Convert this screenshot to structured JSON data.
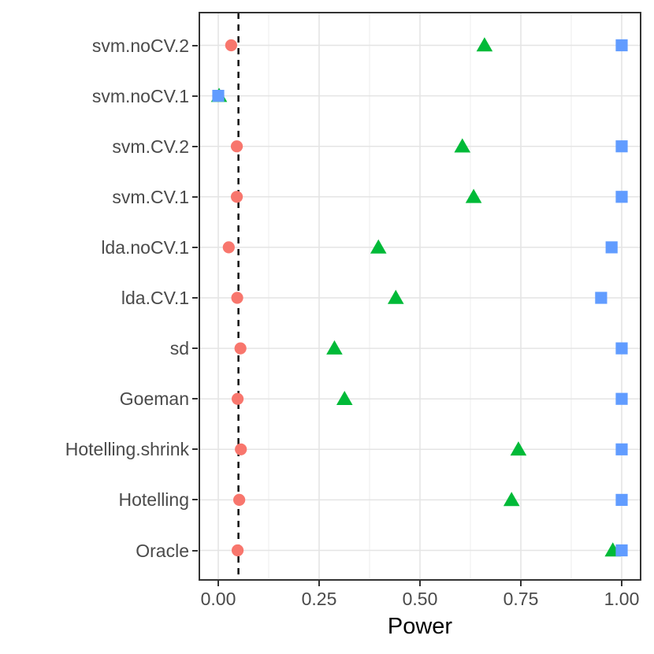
{
  "chart_data": {
    "type": "scatter",
    "subtype": "horizontal-dot-plot",
    "title": "",
    "xlabel": "Power",
    "ylabel": "",
    "x_ticks": [
      "0.00",
      "0.25",
      "0.50",
      "0.75",
      "1.00"
    ],
    "x_tick_values": [
      0,
      0.25,
      0.5,
      0.75,
      1.0
    ],
    "xlim": [
      -0.049,
      1.047
    ],
    "grid": true,
    "legend": "none",
    "categories": [
      "svm.noCV.2",
      "svm.noCV.1",
      "svm.CV.2",
      "svm.CV.1",
      "lda.noCV.1",
      "lda.CV.1",
      "sd",
      "Goeman",
      "Hotelling.shrink",
      "Hotelling",
      "Oracle"
    ],
    "series": [
      {
        "name": "red-circles",
        "marker": "circle",
        "color": "#F8766D",
        "values": [
          0.032,
          0.0,
          0.046,
          0.046,
          0.026,
          0.047,
          0.055,
          0.048,
          0.056,
          0.052,
          0.048
        ]
      },
      {
        "name": "green-triangles",
        "marker": "triangle",
        "color": "#00BA38",
        "values": [
          0.66,
          0.002,
          0.605,
          0.633,
          0.397,
          0.44,
          0.288,
          0.313,
          0.744,
          0.727,
          0.978
        ]
      },
      {
        "name": "blue-squares",
        "marker": "square",
        "color": "#619CFF",
        "values": [
          1.0,
          0.0,
          1.0,
          1.0,
          0.975,
          0.949,
          1.0,
          1.0,
          1.0,
          1.0,
          1.0
        ]
      }
    ],
    "reference_line": {
      "value": 0.05,
      "style": "dashed",
      "color": "#000000"
    },
    "panel_border_color": "#333333",
    "grid_major_color": "#e4e4e4",
    "grid_minor_color": "#f0f0f0"
  }
}
